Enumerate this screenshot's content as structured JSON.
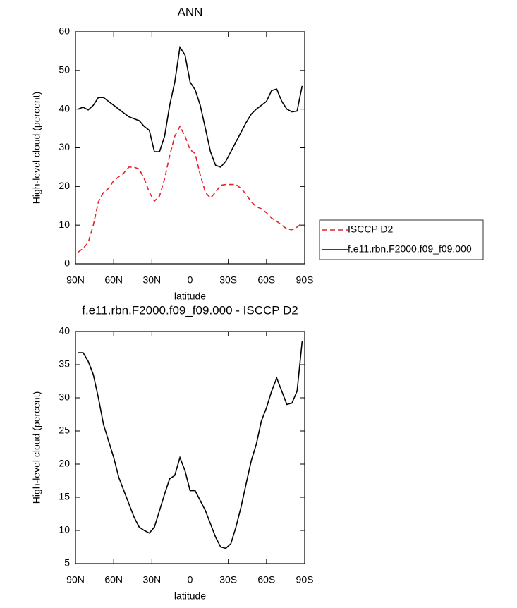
{
  "chart_data": [
    {
      "type": "line",
      "title": "ANN",
      "xlabel": "latitude",
      "ylabel": "High-level cloud (percent)",
      "x": [
        88,
        84,
        80,
        76,
        72,
        68,
        64,
        60,
        56,
        52,
        48,
        44,
        40,
        36,
        32,
        28,
        24,
        20,
        16,
        12,
        8,
        4,
        0,
        -4,
        -8,
        -12,
        -16,
        -20,
        -24,
        -28,
        -32,
        -36,
        -40,
        -44,
        -48,
        -52,
        -56,
        -60,
        -64,
        -68,
        -72,
        -76,
        -80,
        -84,
        -88
      ],
      "series": [
        {
          "name": "ISCCP D2",
          "color": "#e8202a",
          "dash": true,
          "values": [
            3,
            4,
            5.5,
            10,
            16,
            18.5,
            19.5,
            21.5,
            22.5,
            23.5,
            25,
            25,
            24.5,
            22,
            18.5,
            16.2,
            17.5,
            22,
            28,
            33,
            35.5,
            33,
            29.5,
            28.5,
            23,
            18.5,
            17,
            18.5,
            20.3,
            20.5,
            20.5,
            20.5,
            19.5,
            18,
            16,
            14.8,
            14.2,
            13.2,
            11.8,
            11,
            10,
            9,
            8.8,
            9.5,
            10.5
          ]
        },
        {
          "name": "f.e11.rbn.F2000.f09_f09.000",
          "color": "#000000",
          "dash": false,
          "values": [
            40,
            40.5,
            39.8,
            41,
            43,
            43,
            42,
            41,
            40,
            39,
            38,
            37.5,
            37,
            35.5,
            34.5,
            29,
            29,
            33,
            41,
            47,
            56,
            54,
            47,
            45,
            41,
            35,
            29,
            25.5,
            25,
            26.5,
            29,
            31.5,
            34,
            36.5,
            38.7,
            40,
            41,
            42,
            44.8,
            45.2,
            42,
            40,
            39.3,
            39.5,
            46
          ]
        }
      ],
      "xlim": [
        90,
        -90
      ],
      "xticks": [
        {
          "value": 90,
          "label": "90N"
        },
        {
          "value": 60,
          "label": "60N"
        },
        {
          "value": 30,
          "label": "30N"
        },
        0,
        {
          "value": -30,
          "label": "30S"
        },
        {
          "value": -60,
          "label": "60S"
        },
        {
          "value": -90,
          "label": "90S"
        }
      ],
      "ylim": [
        0,
        60
      ],
      "yticks": [
        0,
        10,
        20,
        30,
        40,
        50,
        60
      ],
      "legend": "right"
    },
    {
      "type": "line",
      "title": "f.e11.rbn.F2000.f09_f09.000 - ISCCP D2",
      "xlabel": "latitude",
      "ylabel": "High-level cloud (percent)",
      "x": [
        88,
        84,
        80,
        76,
        72,
        68,
        64,
        60,
        56,
        52,
        48,
        44,
        40,
        36,
        32,
        28,
        24,
        20,
        16,
        12,
        8,
        4,
        0,
        -4,
        -8,
        -12,
        -16,
        -20,
        -24,
        -28,
        -32,
        -36,
        -40,
        -44,
        -48,
        -52,
        -56,
        -60,
        -64,
        -68,
        -72,
        -76,
        -80,
        -84,
        -88
      ],
      "series": [
        {
          "color": "#000000",
          "dash": false,
          "values": [
            36.8,
            36.8,
            35.5,
            33.5,
            30,
            26,
            23.5,
            21,
            18,
            16,
            14,
            12,
            10.5,
            10,
            9.6,
            10.5,
            13,
            15.5,
            17.8,
            18.3,
            21,
            19,
            16,
            16,
            14.5,
            13,
            11,
            9,
            7.5,
            7.3,
            8,
            10.5,
            13.5,
            17,
            20.5,
            23,
            26.5,
            28.5,
            31,
            33,
            31,
            29,
            29.2,
            31,
            38.5
          ]
        }
      ],
      "xlim": [
        90,
        -90
      ],
      "xticks": [
        {
          "value": 90,
          "label": "90N"
        },
        {
          "value": 60,
          "label": "60N"
        },
        {
          "value": 30,
          "label": "30N"
        },
        0,
        {
          "value": -30,
          "label": "30S"
        },
        {
          "value": -60,
          "label": "60S"
        },
        {
          "value": -90,
          "label": "90S"
        }
      ],
      "ylim": [
        5,
        40
      ],
      "yticks": [
        5,
        10,
        15,
        20,
        25,
        30,
        35,
        40
      ]
    }
  ]
}
